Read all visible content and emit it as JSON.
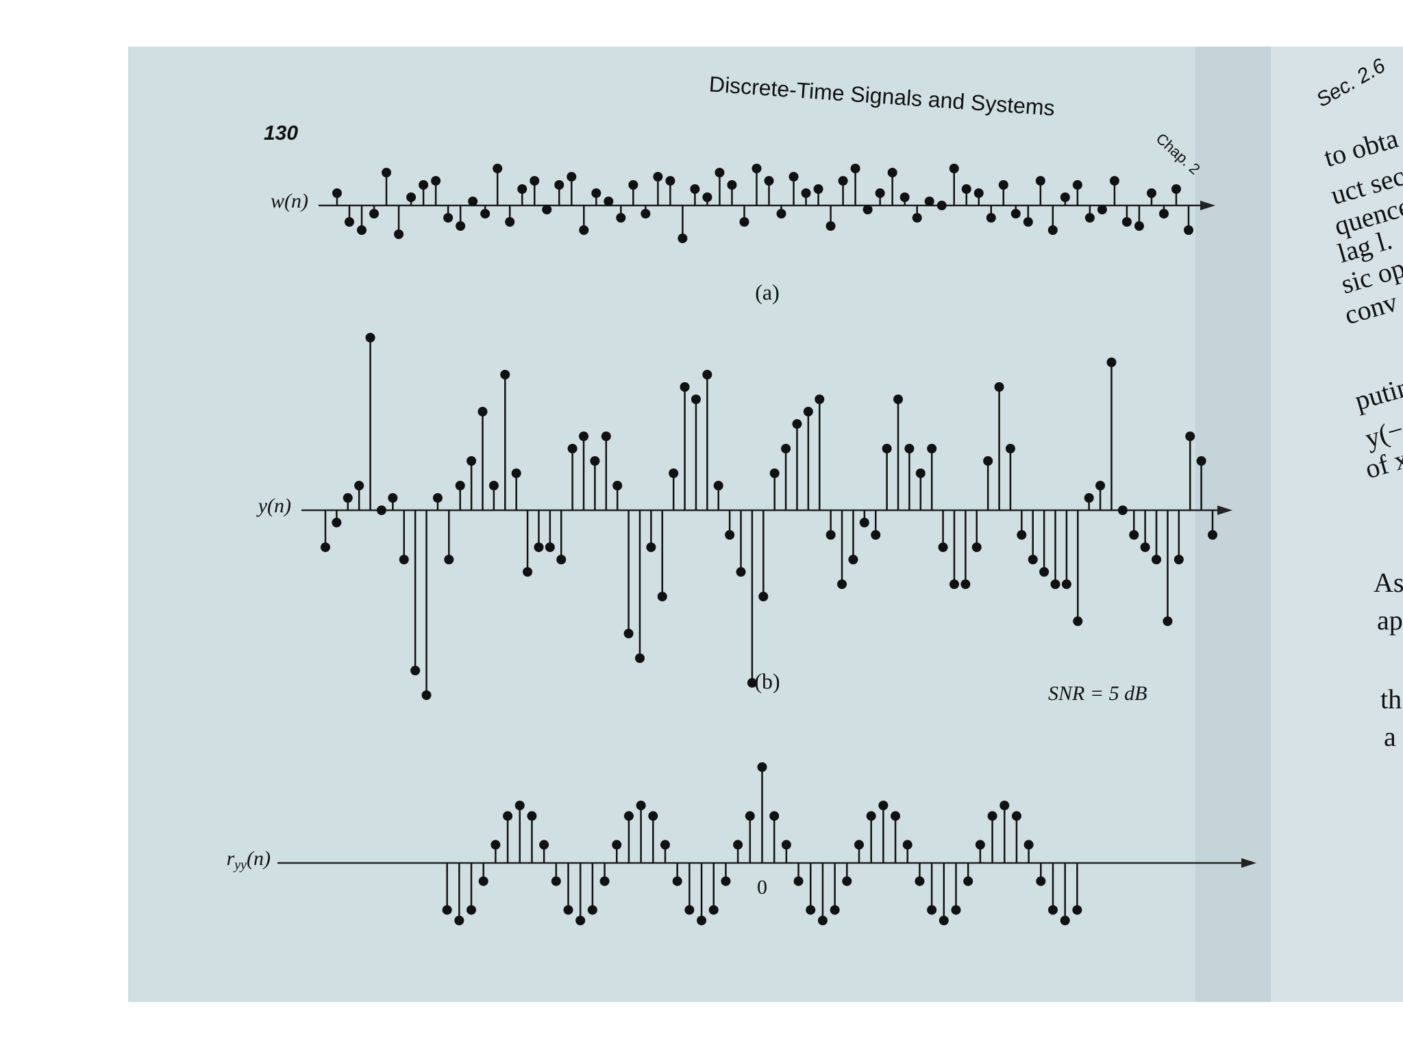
{
  "header": {
    "page_number": "130",
    "running_title": "Discrete-Time Signals and Systems",
    "chapter": "Chap. 2"
  },
  "right_page": {
    "section": "Sec. 2.6",
    "lines": [
      "to obta",
      "uct sec",
      "quence",
      "lag l.",
      "sic op",
      "conv",
      "putin",
      "y(−",
      "of x",
      "As",
      "ap",
      "th",
      "a"
    ]
  },
  "chart_data": [
    {
      "type": "stem",
      "ylabel": "w(n)",
      "caption": "(a)",
      "ylim": [
        -1.5,
        1.5
      ],
      "values": [
        0.3,
        -0.4,
        -0.6,
        -0.2,
        0.8,
        -0.7,
        0.2,
        0.5,
        0.6,
        -0.3,
        -0.5,
        0.1,
        -0.2,
        0.9,
        -0.4,
        0.4,
        0.6,
        -0.1,
        0.5,
        0.7,
        -0.6,
        0.3,
        0.1,
        -0.3,
        0.5,
        -0.2,
        0.7,
        0.6,
        -0.8,
        0.4,
        0.2,
        0.8,
        0.5,
        -0.4,
        0.9,
        0.6,
        -0.2,
        0.7,
        0.3,
        0.4,
        -0.5,
        0.6,
        0.9,
        -0.1,
        0.3,
        0.8,
        0.2,
        -0.3,
        0.1,
        0.0,
        0.9,
        0.4,
        0.3,
        -0.3,
        0.5,
        -0.2,
        -0.4,
        0.6,
        -0.6,
        0.2,
        0.5,
        -0.3,
        -0.1,
        0.6,
        -0.4,
        -0.5,
        0.3,
        -0.2,
        0.4,
        -0.6
      ]
    },
    {
      "type": "stem",
      "ylabel": "y(n)",
      "caption": "(b)",
      "annotation": "SNR = 5 dB",
      "ylim": [
        -1.5,
        1.5
      ],
      "values": [
        -0.3,
        -0.1,
        0.1,
        0.2,
        1.4,
        0.0,
        0.1,
        -0.4,
        -1.3,
        -1.5,
        0.1,
        -0.4,
        0.2,
        0.4,
        0.8,
        0.2,
        1.1,
        0.3,
        -0.5,
        -0.3,
        -0.3,
        -0.4,
        0.5,
        0.6,
        0.4,
        0.6,
        0.2,
        -1.0,
        -1.2,
        -0.3,
        -0.7,
        0.3,
        1.0,
        0.9,
        1.1,
        0.2,
        -0.2,
        -0.5,
        -1.4,
        -0.7,
        0.3,
        0.5,
        0.7,
        0.8,
        0.9,
        -0.2,
        -0.6,
        -0.4,
        -0.1,
        -0.2,
        0.5,
        0.9,
        0.5,
        0.3,
        0.5,
        -0.3,
        -0.6,
        -0.6,
        -0.3,
        0.4,
        1.0,
        0.5,
        -0.2,
        -0.4,
        -0.5,
        -0.6,
        -0.6,
        -0.9,
        0.1,
        0.2,
        1.2,
        0.0,
        -0.2,
        -0.3,
        -0.4,
        -0.9,
        -0.4,
        0.6,
        0.4,
        -0.2
      ]
    },
    {
      "type": "stem",
      "ylabel": "r",
      "ylabel_sub": "yy",
      "ylabel_tail": "(n)",
      "ylim": [
        -1.5,
        1.5
      ],
      "xlim": [
        -40,
        40
      ],
      "xticks": [
        0
      ],
      "x": [
        -26,
        -25,
        -24,
        -23,
        -22,
        -21,
        -20,
        -19,
        -18,
        -17,
        -16,
        -15,
        -14,
        -13,
        -12,
        -11,
        -10,
        -9,
        -8,
        -7,
        -6,
        -5,
        -4,
        -3,
        -2,
        -1,
        0,
        1,
        2,
        3,
        4,
        5,
        6,
        7,
        8,
        9,
        10,
        11,
        12,
        13,
        14,
        15,
        16,
        17,
        18,
        19,
        20,
        21,
        22,
        23,
        24,
        25,
        26
      ],
      "values": [
        -0.49,
        -0.6,
        -0.49,
        -0.19,
        0.19,
        0.49,
        0.6,
        0.49,
        0.19,
        -0.19,
        -0.49,
        -0.6,
        -0.49,
        -0.19,
        0.19,
        0.49,
        0.6,
        0.49,
        0.19,
        -0.19,
        -0.49,
        -0.6,
        -0.49,
        -0.19,
        0.19,
        0.49,
        1.0,
        0.49,
        0.19,
        -0.19,
        -0.49,
        -0.6,
        -0.49,
        -0.19,
        0.19,
        0.49,
        0.6,
        0.49,
        0.19,
        -0.19,
        -0.49,
        -0.6,
        -0.49,
        -0.19,
        0.19,
        0.49,
        0.6,
        0.49,
        0.19,
        -0.19,
        -0.49,
        -0.6,
        -0.49
      ]
    }
  ]
}
